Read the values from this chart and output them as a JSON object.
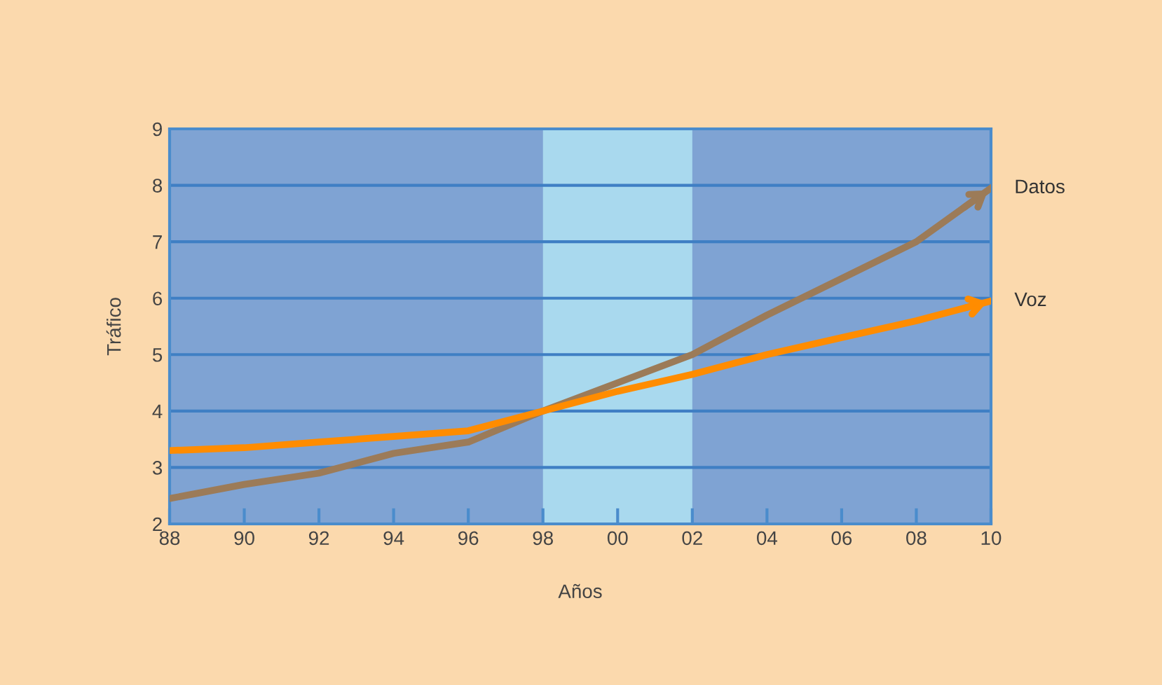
{
  "chart_data": {
    "type": "line",
    "xlabel": "Años",
    "ylabel": "Tráfico",
    "x": [
      1988,
      1990,
      1992,
      1994,
      1996,
      1998,
      2000,
      2002,
      2004,
      2006,
      2008,
      2010
    ],
    "series": [
      {
        "name": "Datos",
        "color": "#9c7b58",
        "values": [
          2.45,
          2.7,
          2.9,
          3.25,
          3.45,
          4.0,
          4.5,
          5.0,
          5.7,
          6.35,
          7.0,
          7.95
        ]
      },
      {
        "name": "Voz",
        "color": "#ff8c00",
        "values": [
          3.3,
          3.35,
          3.45,
          3.55,
          3.65,
          4.0,
          4.35,
          4.65,
          5.0,
          5.3,
          5.6,
          5.95
        ]
      }
    ],
    "xlim": [
      1988,
      2010
    ],
    "xticks": [
      {
        "value": 1988,
        "label": "88"
      },
      {
        "value": 1990,
        "label": "90"
      },
      {
        "value": 1992,
        "label": "92"
      },
      {
        "value": 1994,
        "label": "94"
      },
      {
        "value": 1996,
        "label": "96"
      },
      {
        "value": 1998,
        "label": "98"
      },
      {
        "value": 2000,
        "label": "00"
      },
      {
        "value": 2002,
        "label": "02"
      },
      {
        "value": 2004,
        "label": "04"
      },
      {
        "value": 2006,
        "label": "06"
      },
      {
        "value": 2008,
        "label": "08"
      },
      {
        "value": 2010,
        "label": "10"
      }
    ],
    "ylim": [
      2,
      9
    ],
    "yticks": [
      2,
      3,
      4,
      5,
      6,
      7,
      8,
      9
    ],
    "bands": [
      {
        "axis": "x",
        "from": 1998,
        "to": 2002,
        "color": "#a9d9ee"
      }
    ],
    "grid": "y",
    "legend": "right",
    "marker": "none",
    "line_style": "solid"
  }
}
